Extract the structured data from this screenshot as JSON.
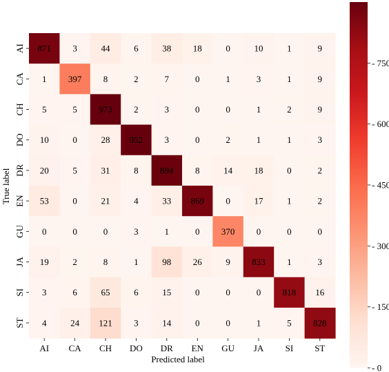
{
  "chart_data": {
    "type": "heatmap",
    "title": "",
    "xlabel": "Predicted label",
    "ylabel": "True label",
    "x_categories": [
      "AI",
      "CA",
      "CH",
      "DO",
      "DR",
      "EN",
      "GU",
      "JA",
      "SI",
      "ST"
    ],
    "y_categories": [
      "AI",
      "CA",
      "CH",
      "DO",
      "DR",
      "EN",
      "GU",
      "JA",
      "SI",
      "ST"
    ],
    "values": [
      [
        871,
        3,
        44,
        6,
        38,
        18,
        0,
        10,
        1,
        9
      ],
      [
        1,
        397,
        8,
        2,
        7,
        0,
        1,
        3,
        1,
        9
      ],
      [
        5,
        5,
        973,
        2,
        3,
        0,
        0,
        1,
        2,
        9
      ],
      [
        10,
        0,
        28,
        952,
        3,
        0,
        2,
        1,
        1,
        3
      ],
      [
        20,
        5,
        31,
        8,
        894,
        8,
        14,
        18,
        0,
        2
      ],
      [
        53,
        0,
        21,
        4,
        33,
        869,
        0,
        17,
        1,
        2
      ],
      [
        0,
        0,
        0,
        3,
        1,
        0,
        370,
        0,
        0,
        0
      ],
      [
        19,
        2,
        8,
        1,
        98,
        26,
        9,
        833,
        1,
        3
      ],
      [
        3,
        6,
        65,
        6,
        15,
        0,
        0,
        0,
        818,
        16
      ],
      [
        4,
        24,
        121,
        3,
        14,
        0,
        0,
        1,
        5,
        828
      ]
    ],
    "colorbar": {
      "min": 0,
      "max": 900,
      "ticks": [
        0,
        150,
        300,
        450,
        600,
        750
      ],
      "colormap": "Reds",
      "low_color": "#fff5f0",
      "high_color": "#67000d"
    },
    "grid": false,
    "annotated": true
  }
}
